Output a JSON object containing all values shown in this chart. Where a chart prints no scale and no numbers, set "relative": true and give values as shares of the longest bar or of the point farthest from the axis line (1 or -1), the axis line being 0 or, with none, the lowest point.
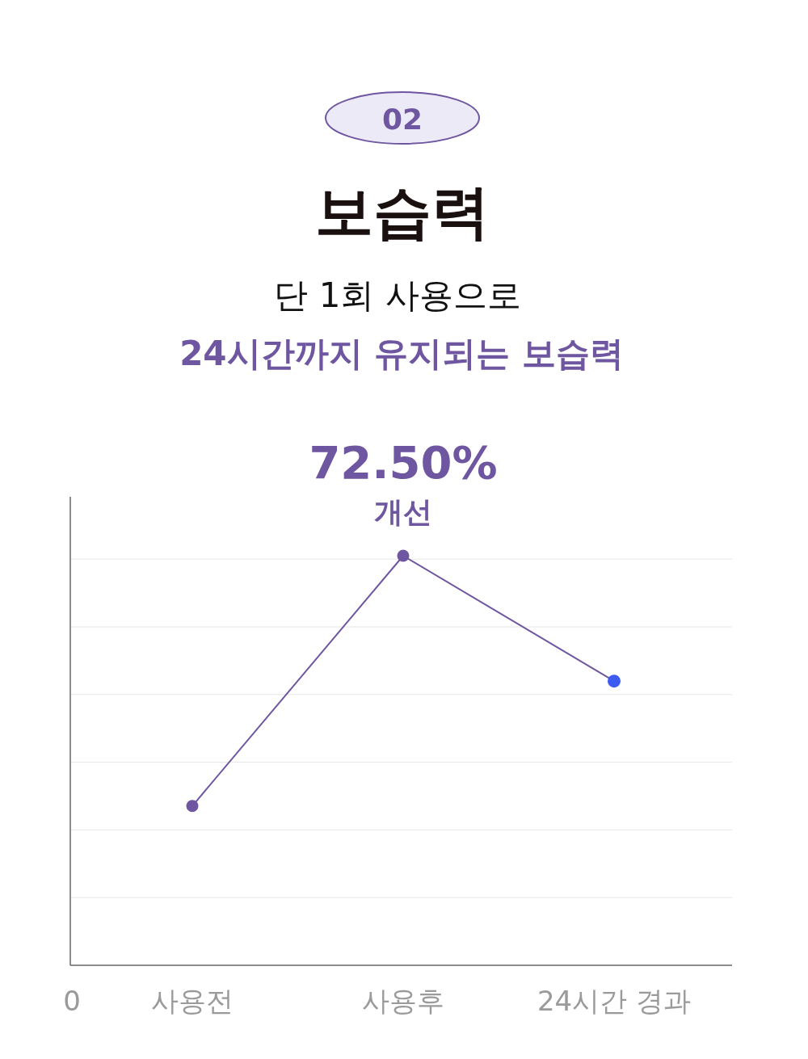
{
  "chart_data": {
    "type": "line",
    "title": "보습력",
    "subtitle": "단 1회 사용으로",
    "categories": [
      "사용전",
      "사용후",
      "24시간 경과"
    ],
    "series": [
      {
        "color": "#6e56a0",
        "colors": [
          "#6e56a0",
          "#6e56a0",
          "#3d5af1"
        ],
        "values": [
          0.389,
          1,
          0.694
        ]
      }
    ],
    "relative": true,
    "grid": true,
    "marker": "circle",
    "annotations": [
      "02",
      "24시간까지 유지되는 보습력",
      "0",
      "72.50%",
      "개선"
    ]
  }
}
